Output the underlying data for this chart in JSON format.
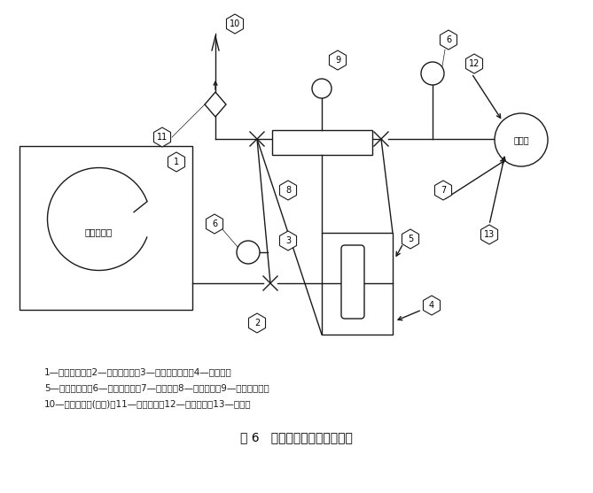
{
  "title": "图 6   水渗透性试验装置示意图",
  "legend_lines": [
    "1—调温调湿箱；2—不锈钢阀门；3—铜或不锈钢管；4—冷冻槽；",
    "5—玻璃真空管；6—真空压力表；7—真空管；8—真空导管；9—不锈钢阀门；",
    "10—除湿干燥器(硅胶)；11—速开阀门；12—真空阀门；13—真空泵"
  ],
  "bg_color": "#ffffff",
  "line_color": "#1a1a1a",
  "font_size_title": 10,
  "font_size_legend": 7.5
}
